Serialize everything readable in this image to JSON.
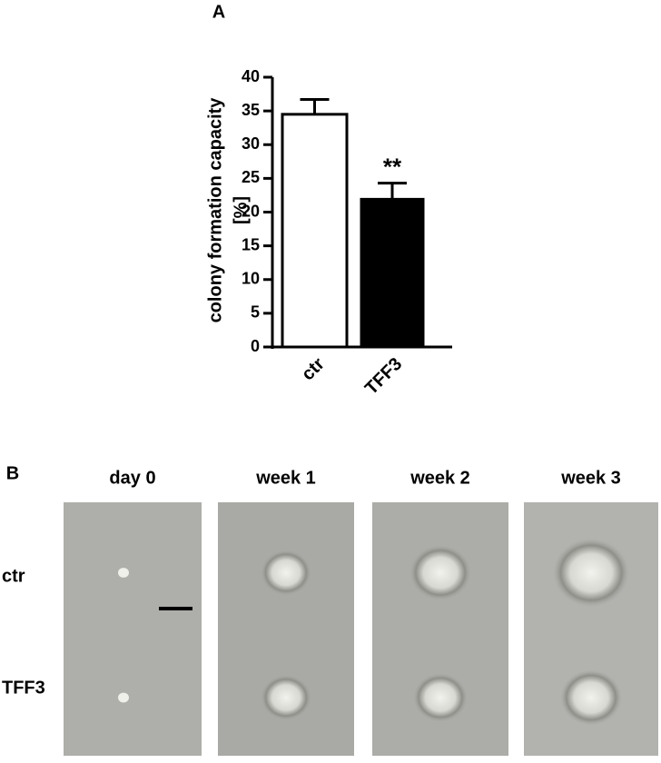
{
  "chart_data": {
    "type": "bar",
    "panel": "A",
    "ylabel": [
      "colony formation capacity",
      "[%]"
    ],
    "categories": [
      "ctr",
      "TFF3"
    ],
    "values": [
      34.5,
      21.9
    ],
    "errors": [
      2.2,
      2.4
    ],
    "colors": [
      "#ffffff",
      "#000000"
    ],
    "edgecolor": "#000000",
    "annotation": "**",
    "ylim": [
      0,
      40
    ],
    "yticks": [
      0,
      5,
      10,
      15,
      20,
      25,
      30,
      35,
      40
    ],
    "grid": false
  },
  "micrographs": {
    "panel": "B",
    "columns": [
      "day 0",
      "week 1",
      "week 2",
      "week 3"
    ],
    "rows": [
      "ctr",
      "TFF3"
    ]
  }
}
